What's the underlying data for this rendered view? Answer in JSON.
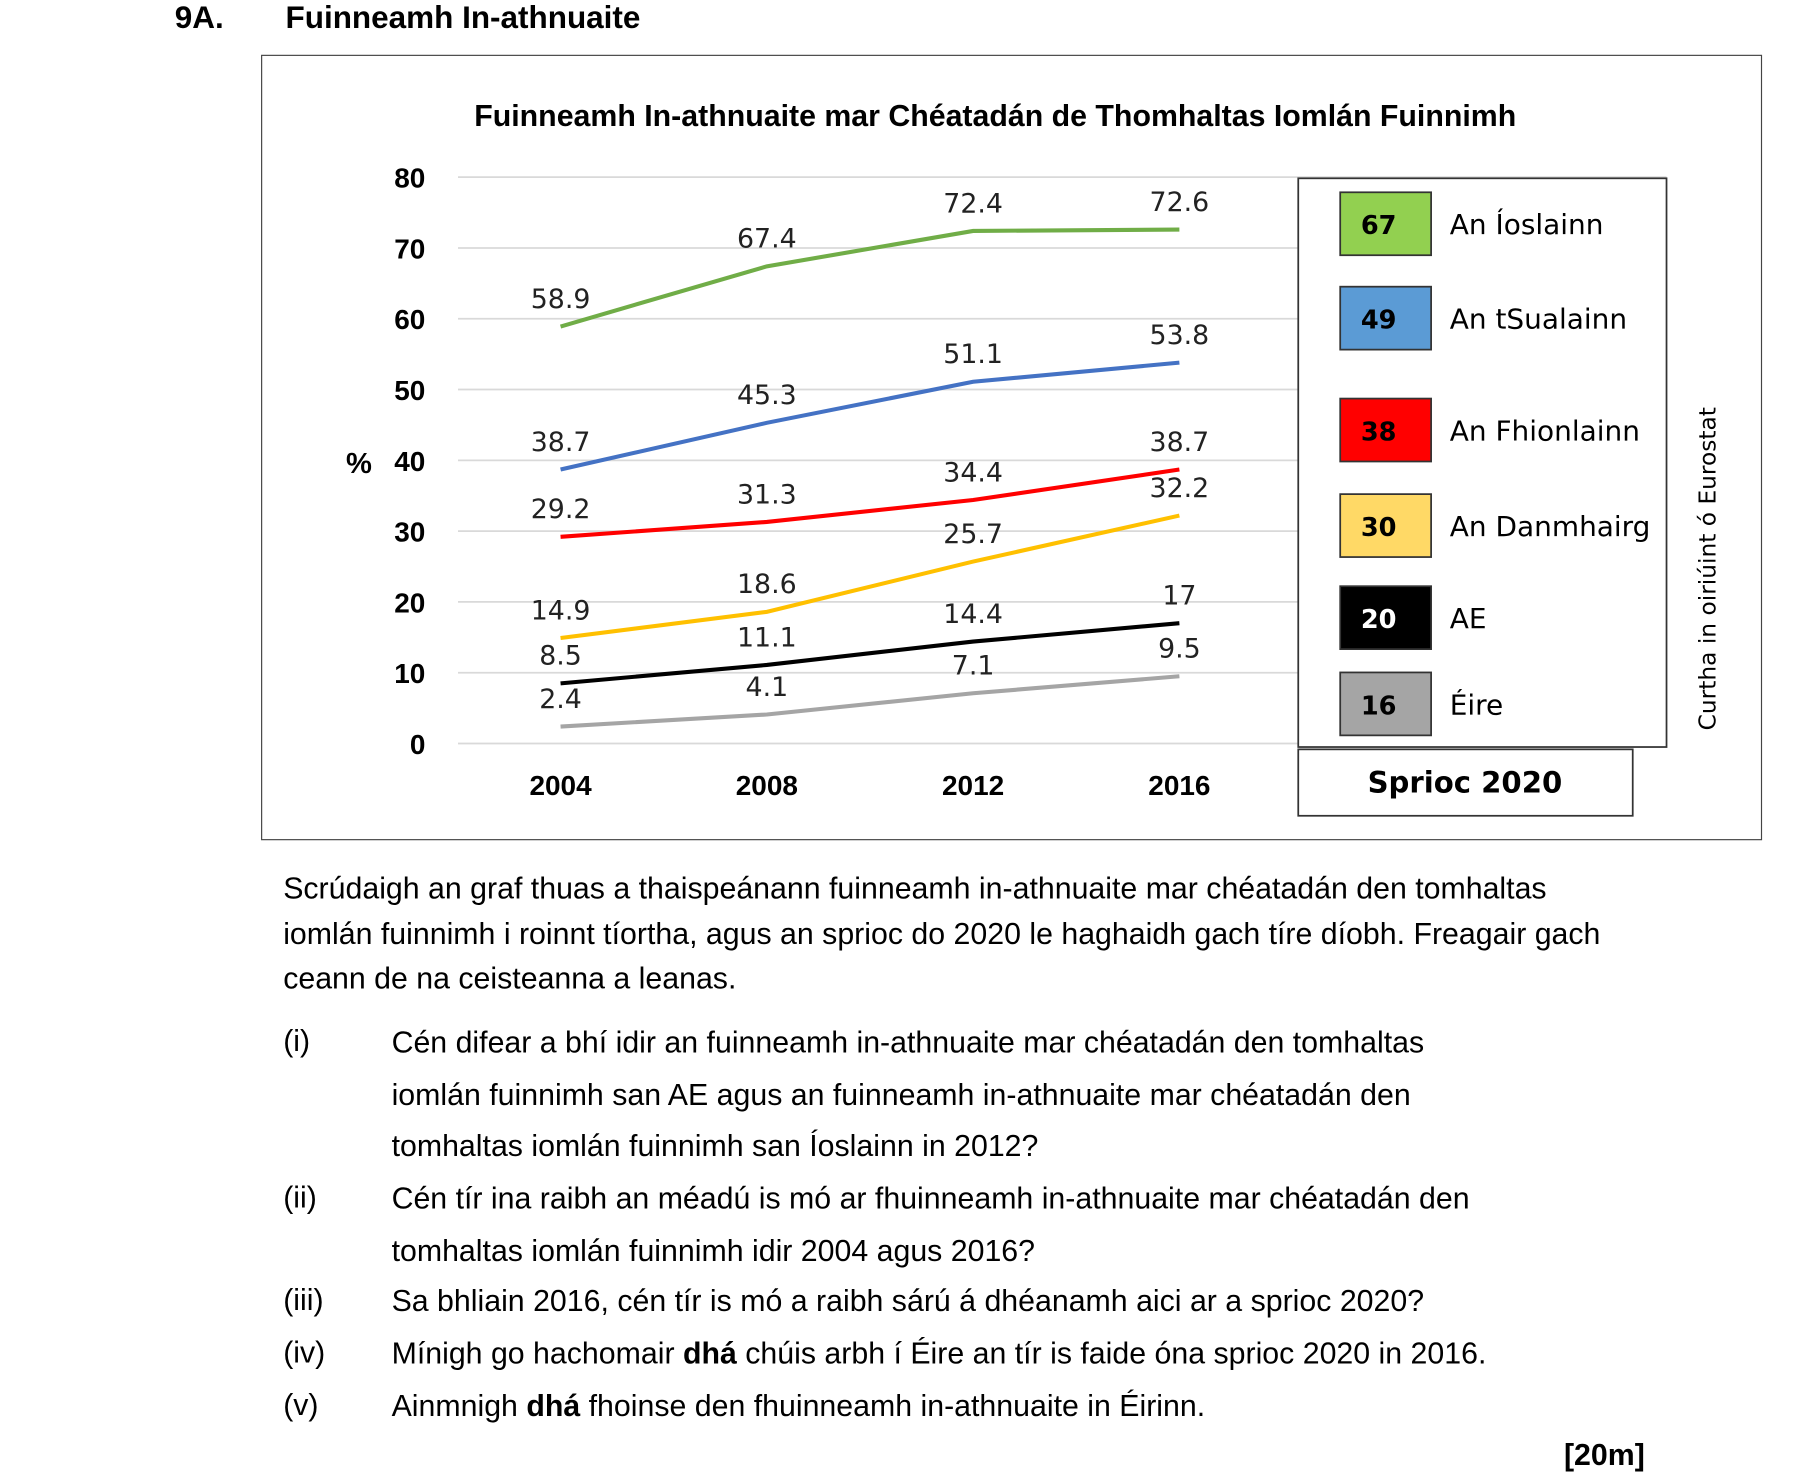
{
  "section": {
    "number": "9A.",
    "title": "Fuinneamh In-athnuaite"
  },
  "chart_data": {
    "type": "line",
    "title": "Fuinneamh In-athnuaite mar Chéatadán de Thomhaltas Iomlán Fuinnimh",
    "ylabel": "%",
    "xlabel": "",
    "ylim": [
      0,
      80
    ],
    "yticks": [
      0,
      10,
      20,
      30,
      40,
      50,
      60,
      70,
      80
    ],
    "grid": true,
    "categories": [
      "2004",
      "2008",
      "2012",
      "2016"
    ],
    "series": [
      {
        "name": "An Íoslainn",
        "color": "#70ad47",
        "target": 67,
        "target_color": "#92d050",
        "values": [
          58.9,
          67.4,
          72.4,
          72.6
        ],
        "labels": [
          "58.9",
          "67.4",
          "72.4",
          "72.6"
        ]
      },
      {
        "name": "An tSualainn",
        "color": "#4472c4",
        "target": 49,
        "target_color": "#5b9bd5",
        "values": [
          38.7,
          45.3,
          51.1,
          53.8
        ],
        "labels": [
          "38.7",
          "45.3",
          "51.1",
          "53.8"
        ]
      },
      {
        "name": "An Fhionlainn",
        "color": "#ff0000",
        "target": 38,
        "target_color": "#ff0000",
        "values": [
          29.2,
          31.3,
          34.4,
          38.7
        ],
        "labels": [
          "29.2",
          "31.3",
          "34.4",
          "38.7"
        ]
      },
      {
        "name": "An Danmhairg",
        "color": "#ffc000",
        "target": 30,
        "target_color": "#ffd966",
        "values": [
          14.9,
          18.6,
          25.7,
          32.2
        ],
        "labels": [
          "14.9",
          "18.6",
          "25.7",
          "32.2"
        ]
      },
      {
        "name": "AE",
        "color": "#000000",
        "target": 20,
        "target_color": "#000000",
        "values": [
          8.5,
          11.1,
          14.4,
          17
        ],
        "labels": [
          "8.5",
          "11.1",
          "14.4",
          "17"
        ]
      },
      {
        "name": "Éire",
        "color": "#a5a5a5",
        "target": 16,
        "target_color": "#a5a5a5",
        "values": [
          2.4,
          4.1,
          7.1,
          9.5
        ],
        "labels": [
          "2.4",
          "4.1",
          "7.1",
          "9.5"
        ]
      }
    ],
    "legend_title": "Sprioc 2020",
    "legend_placement": "right",
    "source": "Curtha in oiriúint ó  Eurostat"
  },
  "intro": "Scrúdaigh an graf thuas a thaispeánann fuinneamh in-athnuaite mar chéatadán den tomhaltas iomlán fuinnimh i roinnt tíortha, agus an sprioc do 2020 le haghaidh gach tíre díobh.  Freagair gach ceann de na ceisteanna a leanas.",
  "questions": [
    {
      "num": "(i)",
      "lines": [
        "Cén difear a bhí idir an fuinneamh in-athnuaite mar chéatadán den tomhaltas",
        "iomlán fuinnimh san AE agus an fuinneamh in-athnuaite mar chéatadán den",
        "tomhaltas iomlán fuinnimh san Íoslainn in 2012?"
      ]
    },
    {
      "num": "(ii)",
      "lines": [
        "Cén tír ina raibh an méadú is mó ar fhuinneamh in-athnuaite mar chéatadán den",
        "tomhaltas iomlán fuinnimh idir 2004 agus 2016?"
      ]
    },
    {
      "num": "(iii)",
      "lines": [
        "Sa bhliain 2016, cén tír is mó a raibh sárú á dhéanamh aici ar a sprioc 2020?"
      ]
    },
    {
      "num": "(iv)",
      "pre": "Mínigh go hachomair ",
      "bold": "dhá",
      "post": " chúis arbh í Éire an tír is faide óna sprioc 2020 in 2016."
    },
    {
      "num": "(v)",
      "pre": "Ainmnigh ",
      "bold": "dhá",
      "post": " fhoinse den fhuinneamh in-athnuaite in Éirinn."
    }
  ],
  "marks": "[20m]"
}
